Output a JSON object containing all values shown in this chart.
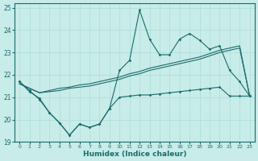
{
  "xlabel": "Humidex (Indice chaleur)",
  "xlim": [
    -0.5,
    23.5
  ],
  "ylim": [
    19.0,
    25.2
  ],
  "yticks": [
    19,
    20,
    21,
    22,
    23,
    24,
    25
  ],
  "xticks": [
    0,
    1,
    2,
    3,
    4,
    5,
    6,
    7,
    8,
    9,
    10,
    11,
    12,
    13,
    14,
    15,
    16,
    17,
    18,
    19,
    20,
    21,
    22,
    23
  ],
  "bg_color": "#c8ece8",
  "line_color": "#1a6b6b",
  "grid_color": "#aaddda",
  "series_upper": [
    21.7,
    21.3,
    20.9,
    20.3,
    19.85,
    19.3,
    19.8,
    19.65,
    19.8,
    20.5,
    22.2,
    22.65,
    24.9,
    23.6,
    22.9,
    22.9,
    23.6,
    23.85,
    23.55,
    23.15,
    23.3,
    22.2,
    21.7,
    21.05
  ],
  "series_lower": [
    21.7,
    21.25,
    20.95,
    20.3,
    19.85,
    19.3,
    19.8,
    19.65,
    19.8,
    20.5,
    21.0,
    21.05,
    21.1,
    21.1,
    21.15,
    21.2,
    21.25,
    21.3,
    21.35,
    21.4,
    21.45,
    21.05,
    21.05,
    21.05
  ],
  "trend1": [
    21.6,
    21.4,
    21.2,
    21.25,
    21.3,
    21.4,
    21.45,
    21.5,
    21.6,
    21.7,
    21.8,
    21.95,
    22.05,
    22.2,
    22.3,
    22.4,
    22.5,
    22.6,
    22.7,
    22.85,
    23.0,
    23.1,
    23.2,
    21.05
  ],
  "trend2": [
    21.6,
    21.4,
    21.2,
    21.3,
    21.4,
    21.45,
    21.55,
    21.6,
    21.7,
    21.8,
    21.9,
    22.05,
    22.15,
    22.3,
    22.4,
    22.5,
    22.6,
    22.7,
    22.8,
    22.95,
    23.1,
    23.2,
    23.3,
    21.05
  ]
}
